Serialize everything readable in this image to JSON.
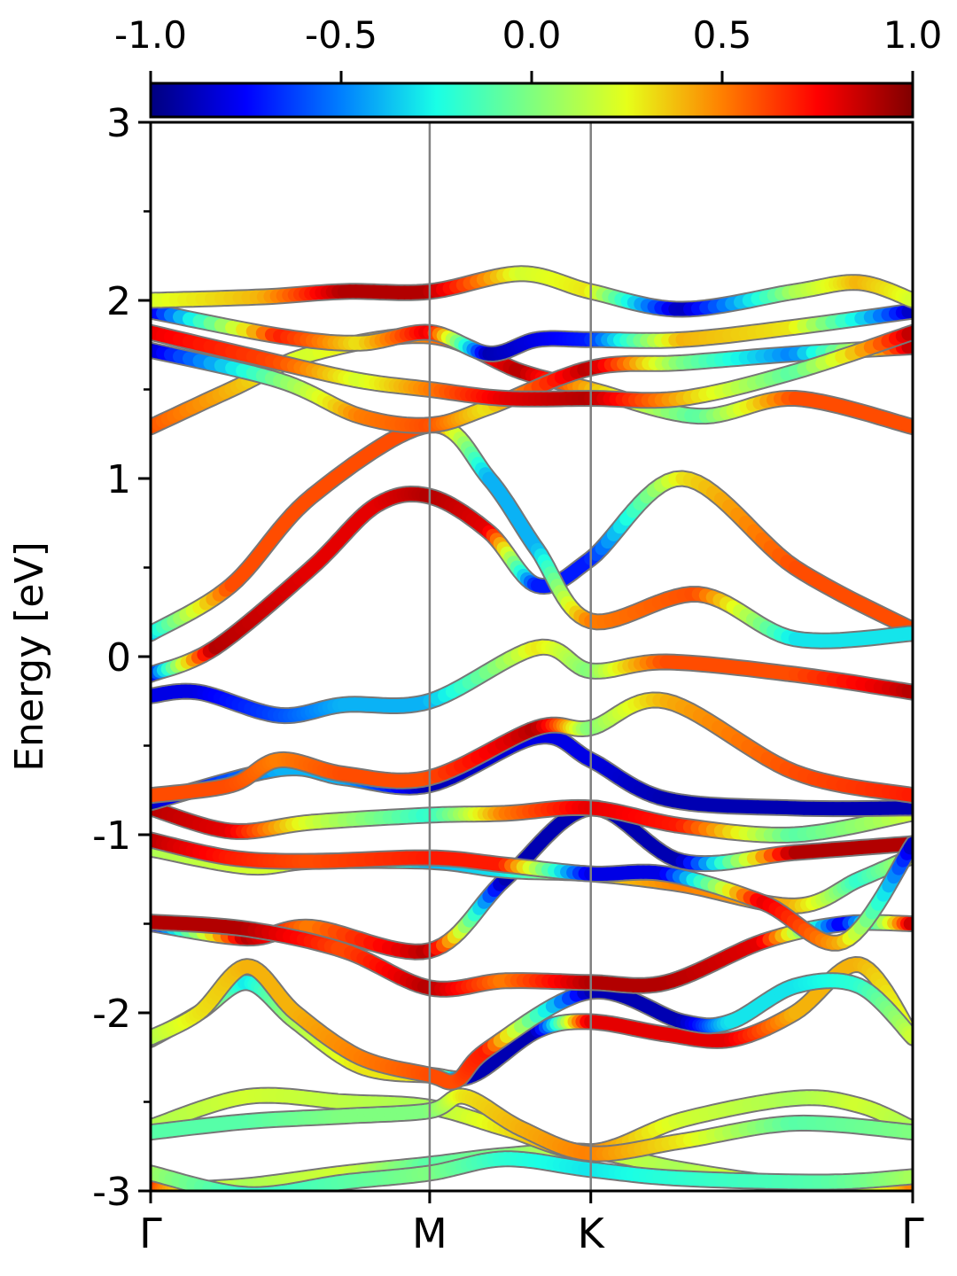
{
  "chart_data": {
    "type": "line",
    "title": "",
    "xlabel": "",
    "ylabel": "Energy [eV]",
    "ylim": [
      -3,
      3
    ],
    "y_ticks": [
      "-3",
      "-2",
      "-1",
      "0",
      "1",
      "2",
      "3"
    ],
    "y_tick_values": [
      -3,
      -2,
      -1,
      0,
      1,
      2,
      3
    ],
    "y_minor_ticks": [
      -2.5,
      -1.5,
      -0.5,
      0.5,
      1.5,
      2.5
    ],
    "xlim": [
      0,
      4.73
    ],
    "x_tick_labels": [
      "Γ",
      "M",
      "K",
      "Γ"
    ],
    "x_tick_positions": [
      0,
      1.732,
      2.732,
      4.732
    ],
    "colorbar": {
      "range": [
        -1.0,
        1.0
      ],
      "tick_labels": [
        "-1.0",
        "-0.5",
        "0.0",
        "0.5",
        "1.0"
      ],
      "tick_values": [
        -1.0,
        -0.5,
        0.0,
        0.5,
        1.0
      ],
      "colormap": "jet",
      "stops": [
        "#00007f",
        "#0000ff",
        "#007fff",
        "#19ffe6",
        "#7fff7f",
        "#e6ff19",
        "#ff7f00",
        "#ff0000",
        "#7f0000"
      ]
    },
    "series": [
      {
        "values": [
          [
            0,
            -2.98
          ],
          [
            0.15,
            -2.99
          ],
          [
            0.6,
            -2.97
          ],
          [
            1.2,
            -2.9
          ],
          [
            1.732,
            -2.85
          ],
          [
            2.2,
            -2.8
          ],
          [
            2.732,
            -2.78
          ],
          [
            3.3,
            -2.88
          ],
          [
            4.0,
            -2.97
          ],
          [
            4.5,
            -2.98
          ],
          [
            4.732,
            -2.97
          ]
        ],
        "colors": [
          0.8,
          0.4,
          0.1,
          0.2,
          -0.1,
          0.0,
          0.2,
          0.1,
          0.3,
          0.2,
          0.5
        ]
      },
      {
        "values": [
          [
            0,
            -2.9
          ],
          [
            0.6,
            -3.02
          ],
          [
            1.2,
            -2.95
          ],
          [
            1.732,
            -2.9
          ],
          [
            2.2,
            -2.82
          ],
          [
            2.732,
            -2.88
          ],
          [
            3.3,
            -2.93
          ],
          [
            4.2,
            -2.95
          ],
          [
            4.732,
            -2.92
          ]
        ],
        "colors": [
          0.1,
          -0.2,
          -0.1,
          0.0,
          -0.2,
          -0.3,
          -0.2,
          -0.1,
          0.1
        ]
      },
      {
        "values": [
          [
            0,
            -2.64
          ],
          [
            0.6,
            -2.47
          ],
          [
            1.2,
            -2.5
          ],
          [
            1.732,
            -2.53
          ],
          [
            2.2,
            -2.65
          ],
          [
            2.732,
            -2.78
          ],
          [
            3.3,
            -2.6
          ],
          [
            4.0,
            -2.48
          ],
          [
            4.4,
            -2.52
          ],
          [
            4.732,
            -2.65
          ]
        ],
        "colors": [
          0.1,
          0.2,
          0.15,
          0.1,
          0.3,
          0.5,
          0.2,
          0.1,
          0.2,
          0.1
        ]
      },
      {
        "values": [
          [
            0,
            -2.67
          ],
          [
            0.6,
            -2.61
          ],
          [
            1.2,
            -2.58
          ],
          [
            1.732,
            -2.55
          ],
          [
            1.95,
            -2.47
          ],
          [
            2.3,
            -2.65
          ],
          [
            2.732,
            -2.79
          ],
          [
            3.3,
            -2.72
          ],
          [
            4.0,
            -2.62
          ],
          [
            4.732,
            -2.67
          ]
        ],
        "colors": [
          -0.1,
          -0.1,
          0.0,
          0.0,
          0.3,
          0.4,
          0.5,
          0.3,
          -0.1,
          0.0
        ]
      },
      {
        "values": [
          [
            0,
            -2.15
          ],
          [
            0.3,
            -2.0
          ],
          [
            0.6,
            -1.83
          ],
          [
            0.9,
            -2.05
          ],
          [
            1.3,
            -2.3
          ],
          [
            1.732,
            -2.35
          ],
          [
            2.0,
            -2.35
          ],
          [
            2.4,
            -2.1
          ],
          [
            2.732,
            -2.05
          ],
          [
            3.2,
            -2.12
          ],
          [
            3.6,
            -2.15
          ],
          [
            4.0,
            -2.0
          ],
          [
            4.4,
            -1.73
          ],
          [
            4.732,
            -2.14
          ]
        ],
        "colors": [
          0.1,
          0.2,
          -0.3,
          0.1,
          0.3,
          0.3,
          -0.9,
          -0.9,
          0.8,
          0.8,
          0.8,
          0.4,
          0.4,
          0.2
        ]
      },
      {
        "values": [
          [
            0,
            -2.14
          ],
          [
            0.3,
            -2.0
          ],
          [
            0.6,
            -1.74
          ],
          [
            0.9,
            -2.0
          ],
          [
            1.3,
            -2.25
          ],
          [
            1.732,
            -2.35
          ],
          [
            1.9,
            -2.38
          ],
          [
            2.1,
            -2.2
          ],
          [
            2.732,
            -1.88
          ],
          [
            3.3,
            -2.05
          ],
          [
            3.6,
            -2.05
          ],
          [
            4.0,
            -1.85
          ],
          [
            4.4,
            -1.85
          ],
          [
            4.732,
            -2.14
          ]
        ],
        "colors": [
          0.1,
          0.3,
          0.4,
          0.4,
          0.5,
          0.6,
          0.6,
          0.7,
          -0.9,
          -0.9,
          -0.3,
          -0.3,
          -0.2,
          0.2
        ]
      },
      {
        "values": [
          [
            0,
            -1.5
          ],
          [
            0.6,
            -1.58
          ],
          [
            1.0,
            -1.52
          ],
          [
            1.732,
            -1.65
          ],
          [
            2.2,
            -1.25
          ],
          [
            2.732,
            -0.85
          ],
          [
            3.3,
            -1.15
          ],
          [
            4.0,
            -1.1
          ],
          [
            4.732,
            -1.05
          ]
        ],
        "colors": [
          -0.9,
          0.9,
          0.5,
          0.9,
          -0.9,
          -0.9,
          -0.9,
          0.9,
          0.9
        ]
      },
      {
        "values": [
          [
            0,
            -1.49
          ],
          [
            0.6,
            -1.53
          ],
          [
            1.2,
            -1.65
          ],
          [
            1.732,
            -1.86
          ],
          [
            2.2,
            -1.82
          ],
          [
            2.732,
            -1.83
          ],
          [
            3.2,
            -1.83
          ],
          [
            3.8,
            -1.6
          ],
          [
            4.3,
            -1.5
          ],
          [
            4.732,
            -1.5
          ]
        ],
        "colors": [
          0.9,
          0.9,
          0.6,
          0.9,
          0.5,
          0.9,
          0.9,
          0.8,
          -0.8,
          0.9
        ]
      },
      {
        "values": [
          [
            0,
            -1.08
          ],
          [
            0.6,
            -1.18
          ],
          [
            1.0,
            -1.15
          ],
          [
            1.732,
            -1.15
          ],
          [
            2.2,
            -1.2
          ],
          [
            2.732,
            -1.22
          ],
          [
            3.3,
            -1.28
          ],
          [
            4.0,
            -1.4
          ],
          [
            4.4,
            -1.25
          ],
          [
            4.732,
            -1.12
          ]
        ],
        "colors": [
          0.1,
          0.2,
          0.2,
          -0.4,
          -0.3,
          0.3,
          0.5,
          0.4,
          -0.2,
          0.2
        ]
      },
      {
        "values": [
          [
            0,
            -1.03
          ],
          [
            0.5,
            -1.13
          ],
          [
            1.0,
            -1.15
          ],
          [
            1.732,
            -1.13
          ],
          [
            2.2,
            -1.17
          ],
          [
            2.732,
            -1.22
          ],
          [
            3.2,
            -1.22
          ],
          [
            3.8,
            -1.38
          ],
          [
            4.3,
            -1.6
          ],
          [
            4.732,
            -1.05
          ]
        ],
        "colors": [
          0.9,
          0.7,
          0.6,
          0.7,
          0.7,
          -0.8,
          -0.8,
          0.8,
          0.4,
          -0.9
        ]
      },
      {
        "values": [
          [
            0,
            -0.85
          ],
          [
            0.5,
            -0.98
          ],
          [
            1.0,
            -0.93
          ],
          [
            1.732,
            -0.89
          ],
          [
            2.2,
            -0.88
          ],
          [
            2.732,
            -0.85
          ],
          [
            3.3,
            -0.95
          ],
          [
            4.0,
            -1.0
          ],
          [
            4.732,
            -0.88
          ]
        ],
        "colors": [
          0.9,
          0.8,
          0.2,
          -0.2,
          0.5,
          0.8,
          0.7,
          -0.1,
          0.2
        ]
      },
      {
        "values": [
          [
            0,
            -0.82
          ],
          [
            0.8,
            -0.63
          ],
          [
            1.2,
            -0.68
          ],
          [
            1.732,
            -0.72
          ],
          [
            2.4,
            -0.45
          ],
          [
            2.732,
            -0.58
          ],
          [
            3.2,
            -0.8
          ],
          [
            4.0,
            -0.85
          ],
          [
            4.732,
            -0.85
          ]
        ],
        "colors": [
          -0.9,
          -0.4,
          -0.4,
          -0.9,
          -0.8,
          -0.8,
          -0.9,
          -0.9,
          -0.9
        ]
      },
      {
        "values": [
          [
            0,
            -0.78
          ],
          [
            0.5,
            -0.72
          ],
          [
            0.8,
            -0.58
          ],
          [
            1.2,
            -0.66
          ],
          [
            1.732,
            -0.68
          ],
          [
            2.4,
            -0.4
          ],
          [
            2.732,
            -0.4
          ],
          [
            3.2,
            -0.25
          ],
          [
            4.0,
            -0.65
          ],
          [
            4.732,
            -0.78
          ]
        ],
        "colors": [
          0.6,
          0.6,
          0.5,
          0.6,
          0.6,
          0.9,
          0.0,
          0.4,
          0.6,
          0.7
        ]
      },
      {
        "values": [
          [
            0,
            -0.22
          ],
          [
            0.3,
            -0.2
          ],
          [
            0.8,
            -0.33
          ],
          [
            1.2,
            -0.27
          ],
          [
            1.732,
            -0.25
          ],
          [
            2.4,
            0.05
          ],
          [
            2.732,
            -0.08
          ],
          [
            3.2,
            -0.03
          ],
          [
            4.0,
            -0.1
          ],
          [
            4.732,
            -0.2
          ]
        ],
        "colors": [
          -0.8,
          -0.8,
          -0.6,
          -0.4,
          -0.4,
          0.3,
          0.0,
          0.6,
          0.6,
          0.9
        ]
      },
      {
        "values": [
          [
            0,
            -0.1
          ],
          [
            0.4,
            0.05
          ],
          [
            1.0,
            0.5
          ],
          [
            1.4,
            0.85
          ],
          [
            1.732,
            0.9
          ],
          [
            2.1,
            0.7
          ],
          [
            2.4,
            0.4
          ],
          [
            2.732,
            0.55
          ],
          [
            3.3,
            1.0
          ],
          [
            4.0,
            0.5
          ],
          [
            4.732,
            0.15
          ]
        ],
        "colors": [
          -0.9,
          0.9,
          0.8,
          0.8,
          0.9,
          0.8,
          -0.7,
          -0.7,
          0.3,
          0.6,
          0.6
        ]
      },
      {
        "values": [
          [
            0,
            0.13
          ],
          [
            0.5,
            0.4
          ],
          [
            1.0,
            0.9
          ],
          [
            1.732,
            1.3
          ],
          [
            2.1,
            1.0
          ],
          [
            2.4,
            0.6
          ],
          [
            2.732,
            0.2
          ],
          [
            3.4,
            0.35
          ],
          [
            4.0,
            0.1
          ],
          [
            4.732,
            0.13
          ]
        ],
        "colors": [
          -0.4,
          0.6,
          0.6,
          0.6,
          -0.4,
          -0.4,
          0.5,
          0.6,
          -0.3,
          -0.3
        ]
      },
      {
        "values": [
          [
            0,
            1.29
          ],
          [
            0.5,
            1.5
          ],
          [
            1.0,
            1.7
          ],
          [
            1.732,
            1.8
          ],
          [
            2.3,
            1.6
          ],
          [
            2.732,
            1.5
          ],
          [
            3.4,
            1.35
          ],
          [
            4.0,
            1.45
          ],
          [
            4.732,
            1.29
          ]
        ],
        "colors": [
          0.6,
          0.4,
          0.2,
          0.5,
          0.9,
          0.4,
          -0.1,
          0.6,
          0.6
        ]
      },
      {
        "values": [
          [
            0,
            1.72
          ],
          [
            0.8,
            1.55
          ],
          [
            1.3,
            1.35
          ],
          [
            1.732,
            1.3
          ],
          [
            2.1,
            1.4
          ],
          [
            2.732,
            1.62
          ],
          [
            3.3,
            1.65
          ],
          [
            4.0,
            1.7
          ],
          [
            4.732,
            1.74
          ]
        ],
        "colors": [
          -0.9,
          0.0,
          0.5,
          0.6,
          0.3,
          0.9,
          0.0,
          -0.5,
          0.9
        ]
      },
      {
        "values": [
          [
            0,
            1.82
          ],
          [
            0.8,
            1.65
          ],
          [
            1.3,
            1.55
          ],
          [
            1.732,
            1.5
          ],
          [
            2.2,
            1.45
          ],
          [
            2.732,
            1.45
          ],
          [
            3.3,
            1.45
          ],
          [
            4.0,
            1.6
          ],
          [
            4.732,
            1.82
          ]
        ],
        "colors": [
          0.8,
          0.6,
          0.2,
          0.5,
          0.8,
          0.9,
          0.4,
          -0.1,
          0.9
        ]
      },
      {
        "values": [
          [
            0,
            1.94
          ],
          [
            0.8,
            1.8
          ],
          [
            1.3,
            1.76
          ],
          [
            1.732,
            1.82
          ],
          [
            2.1,
            1.7
          ],
          [
            2.4,
            1.78
          ],
          [
            2.732,
            1.78
          ],
          [
            3.3,
            1.78
          ],
          [
            4.0,
            1.85
          ],
          [
            4.732,
            1.94
          ]
        ],
        "colors": [
          -0.9,
          0.7,
          0.3,
          0.8,
          -0.9,
          -0.8,
          -0.7,
          0.4,
          0.3,
          -0.9
        ]
      },
      {
        "values": [
          [
            0,
            2.0
          ],
          [
            0.7,
            2.02
          ],
          [
            1.2,
            2.05
          ],
          [
            1.732,
            2.05
          ],
          [
            2.3,
            2.15
          ],
          [
            2.732,
            2.05
          ],
          [
            3.3,
            1.95
          ],
          [
            4.0,
            2.05
          ],
          [
            4.4,
            2.1
          ],
          [
            4.732,
            2.0
          ]
        ],
        "colors": [
          0.2,
          0.4,
          0.9,
          0.9,
          0.2,
          0.3,
          -0.9,
          0.1,
          0.4,
          0.2
        ]
      }
    ]
  }
}
